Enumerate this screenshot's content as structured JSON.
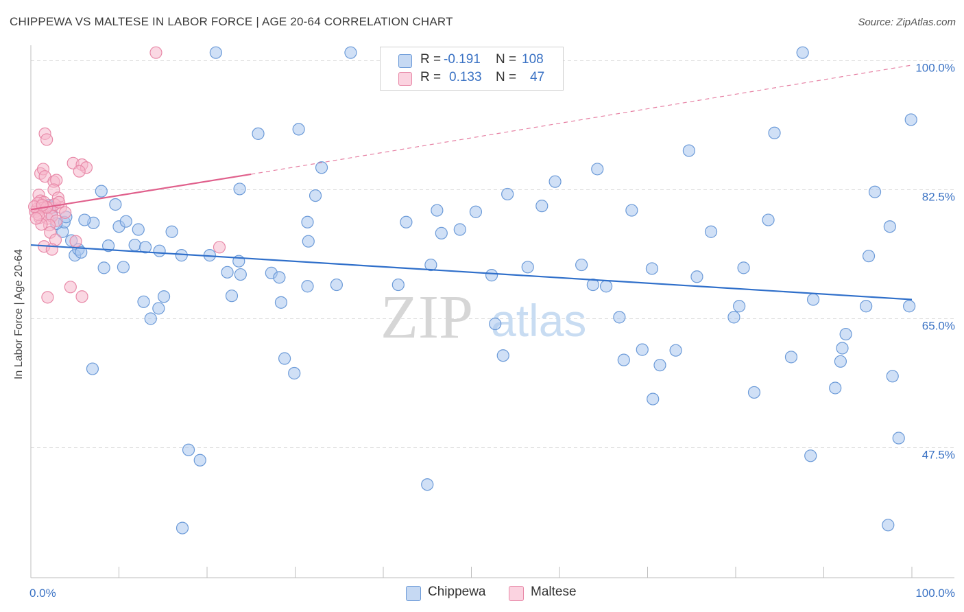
{
  "title": "CHIPPEWA VS MALTESE IN LABOR FORCE | AGE 20-64 CORRELATION CHART",
  "source": "Source: ZipAtlas.com",
  "watermark": {
    "zip": "ZIP",
    "atlas": "atlas"
  },
  "legend": {
    "r_label": "R =",
    "n_label": "N =",
    "rows": [
      {
        "series": "Chippewa",
        "r": "-0.191",
        "n": "108",
        "color": "#a9c7ee"
      },
      {
        "series": "Maltese",
        "r": "0.133",
        "n": "47",
        "color": "#f6b8cc"
      }
    ]
  },
  "colors": {
    "chippewa_fill": "#a9c7ee",
    "chippewa_stroke": "#6b9ad8",
    "chippewa_line": "#2f6fca",
    "maltese_fill": "#f6b8cc",
    "maltese_stroke": "#e889a8",
    "maltese_line": "#e0608c",
    "tick_text": "#3a72c4"
  },
  "chart_data": {
    "type": "scatter",
    "title": "CHIPPEWA VS MALTESE IN LABOR FORCE | AGE 20-64 CORRELATION CHART",
    "xlabel": "",
    "ylabel": "In Labor Force | Age 20-64",
    "xlim": [
      0,
      100
    ],
    "ylim": [
      30,
      101.5
    ],
    "x_tick_labels": [
      {
        "value": 0,
        "label": "0.0%"
      },
      {
        "value": 100,
        "label": "100.0%"
      }
    ],
    "y_tick_labels": [
      {
        "value": 100.0,
        "label": "100.0%"
      },
      {
        "value": 82.5,
        "label": "82.5%"
      },
      {
        "value": 65.0,
        "label": "65.0%"
      },
      {
        "value": 47.5,
        "label": "47.5%"
      }
    ],
    "grid": true,
    "series": [
      {
        "name": "Chippewa",
        "trend": {
          "x": [
            0,
            100
          ],
          "y": [
            75.0,
            67.6
          ]
        },
        "points": [
          [
            21,
            101.1
          ],
          [
            36.3,
            101.1
          ],
          [
            87.6,
            101.1
          ],
          [
            99.9,
            92.0
          ],
          [
            25.8,
            90.1
          ],
          [
            30.4,
            90.7
          ],
          [
            74.7,
            87.8
          ],
          [
            84.4,
            90.2
          ],
          [
            33,
            85.5
          ],
          [
            54.1,
            81.9
          ],
          [
            59.5,
            83.6
          ],
          [
            64.3,
            85.3
          ],
          [
            8,
            82.3
          ],
          [
            9.6,
            80.5
          ],
          [
            23.7,
            82.6
          ],
          [
            32.3,
            81.7
          ],
          [
            95.8,
            82.2
          ],
          [
            46.1,
            79.7
          ],
          [
            50.5,
            79.5
          ],
          [
            58,
            80.3
          ],
          [
            68.2,
            79.7
          ],
          [
            7.1,
            78
          ],
          [
            10,
            77.5
          ],
          [
            10.8,
            78.2
          ],
          [
            12.2,
            77.1
          ],
          [
            16,
            76.8
          ],
          [
            42.6,
            78.1
          ],
          [
            46.6,
            76.6
          ],
          [
            31.4,
            78.1
          ],
          [
            77.2,
            76.8
          ],
          [
            83.7,
            78.4
          ],
          [
            97.5,
            77.5
          ],
          [
            3.6,
            76.8
          ],
          [
            3.8,
            78.1
          ],
          [
            4.6,
            75.6
          ],
          [
            5,
            73.6
          ],
          [
            5.4,
            74.4
          ],
          [
            5.7,
            74
          ],
          [
            8.8,
            74.9
          ],
          [
            11.8,
            75
          ],
          [
            13,
            74.7
          ],
          [
            14.6,
            74.2
          ],
          [
            17.1,
            73.6
          ],
          [
            20.3,
            73.6
          ],
          [
            31.5,
            75.5
          ],
          [
            48.7,
            77.1
          ],
          [
            23.6,
            72.8
          ],
          [
            95.1,
            73.5
          ],
          [
            8.3,
            71.9
          ],
          [
            10.5,
            72
          ],
          [
            22.3,
            71.3
          ],
          [
            23.8,
            71
          ],
          [
            27.3,
            71.2
          ],
          [
            28.2,
            70.6
          ],
          [
            45.4,
            72.3
          ],
          [
            52.3,
            70.9
          ],
          [
            56.4,
            72
          ],
          [
            62.5,
            72.3
          ],
          [
            70.5,
            71.8
          ],
          [
            75.6,
            70.7
          ],
          [
            80.9,
            71.9
          ],
          [
            31.4,
            69.4
          ],
          [
            34.7,
            69.6
          ],
          [
            41.7,
            69.6
          ],
          [
            63.8,
            69.6
          ],
          [
            65.3,
            69.4
          ],
          [
            12.8,
            67.3
          ],
          [
            15.1,
            68
          ],
          [
            22.8,
            68.1
          ],
          [
            14.5,
            66.4
          ],
          [
            28.4,
            67.2
          ],
          [
            13.6,
            65
          ],
          [
            80.4,
            66.7
          ],
          [
            88.8,
            67.6
          ],
          [
            94.8,
            66.7
          ],
          [
            99.7,
            66.7
          ],
          [
            52.7,
            64.3
          ],
          [
            66.8,
            65.2
          ],
          [
            79.8,
            65.2
          ],
          [
            92.5,
            62.9
          ],
          [
            28.8,
            59.6
          ],
          [
            53.6,
            60
          ],
          [
            67.3,
            59.4
          ],
          [
            69.4,
            60.8
          ],
          [
            91.9,
            59.2
          ],
          [
            92.1,
            61
          ],
          [
            73.2,
            60.7
          ],
          [
            7,
            58.2
          ],
          [
            29.9,
            57.6
          ],
          [
            71.4,
            58.7
          ],
          [
            97.8,
            57.2
          ],
          [
            82.1,
            55
          ],
          [
            70.6,
            54.1
          ],
          [
            86.3,
            59.8
          ],
          [
            91.3,
            55.6
          ],
          [
            17.9,
            47.2
          ],
          [
            19.2,
            45.8
          ],
          [
            88.5,
            46.4
          ],
          [
            98.5,
            48.8
          ],
          [
            45,
            42.5
          ],
          [
            17.2,
            36.6
          ],
          [
            97.3,
            37
          ],
          [
            6.1,
            78.4
          ],
          [
            2.4,
            80.1
          ],
          [
            2.4,
            79
          ],
          [
            2.9,
            77.9
          ],
          [
            4,
            78.8
          ],
          [
            2,
            80.4
          ]
        ]
      },
      {
        "name": "Maltese",
        "trend": {
          "x": [
            0,
            25
          ],
          "y": [
            79.8,
            84.6
          ],
          "dashed_extension": {
            "x": [
              25,
              100
            ],
            "y": [
              84.6,
              99.4
            ]
          }
        },
        "points": [
          [
            14.2,
            101.1
          ],
          [
            1.6,
            90.1
          ],
          [
            1.8,
            89.3
          ],
          [
            4.8,
            86.1
          ],
          [
            5.8,
            85.9
          ],
          [
            6.3,
            85.5
          ],
          [
            5.5,
            85
          ],
          [
            1.1,
            84.7
          ],
          [
            1.4,
            85.3
          ],
          [
            1.6,
            84.3
          ],
          [
            2.6,
            83.6
          ],
          [
            2.9,
            83.8
          ],
          [
            2.6,
            82.5
          ],
          [
            3.1,
            81.4
          ],
          [
            0.9,
            81.8
          ],
          [
            1.1,
            81
          ],
          [
            1.5,
            80.8
          ],
          [
            1.7,
            80.2
          ],
          [
            0.7,
            79.9
          ],
          [
            0.8,
            80.7
          ],
          [
            1.3,
            80
          ],
          [
            2.2,
            80
          ],
          [
            3.4,
            80.1
          ],
          [
            3.9,
            79.4
          ],
          [
            0.5,
            79.5
          ],
          [
            1,
            78.7
          ],
          [
            1.9,
            78.6
          ],
          [
            2.4,
            78.9
          ],
          [
            2.9,
            78.3
          ],
          [
            2.1,
            77.7
          ],
          [
            1.2,
            77.8
          ],
          [
            0.9,
            79.1
          ],
          [
            0.6,
            78.6
          ],
          [
            2.2,
            76.7
          ],
          [
            2.8,
            75.7
          ],
          [
            5.1,
            75.5
          ],
          [
            1.5,
            74.8
          ],
          [
            2.4,
            74.4
          ],
          [
            21.4,
            74.7
          ],
          [
            4.5,
            69.3
          ],
          [
            5.8,
            68
          ],
          [
            1.9,
            67.9
          ],
          [
            2.7,
            80.5
          ],
          [
            1.8,
            80.1
          ],
          [
            0.4,
            80.2
          ],
          [
            1.3,
            80.4
          ],
          [
            3.2,
            80.8
          ]
        ]
      }
    ]
  }
}
